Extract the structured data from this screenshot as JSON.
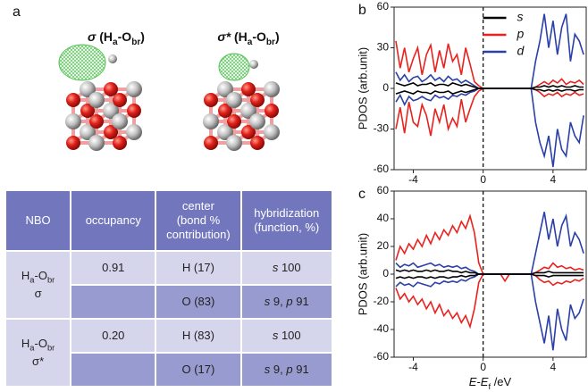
{
  "panel_a": "a",
  "structures": [
    {
      "title": [
        {
          "t": "σ",
          "i": true
        },
        {
          "t": " (H"
        },
        {
          "t": "a",
          "sub": true
        },
        {
          "t": "-O"
        },
        {
          "t": "br",
          "sub": true
        },
        {
          "t": ")"
        }
      ]
    },
    {
      "title": [
        {
          "t": "σ*",
          "i": true
        },
        {
          "t": " (H"
        },
        {
          "t": "a",
          "sub": true
        },
        {
          "t": "-O"
        },
        {
          "t": "br",
          "sub": true
        },
        {
          "t": ")"
        }
      ]
    }
  ],
  "table": {
    "header": [
      [
        "NBO"
      ],
      [
        "occupancy"
      ],
      [
        "center",
        "(bond %",
        "contribution)"
      ],
      [
        "hybridization",
        "(function, %)"
      ]
    ],
    "rows": [
      {
        "nbo": [
          [
            {
              "t": "H"
            },
            {
              "t": "a",
              "sub": true
            },
            {
              "t": "-O"
            },
            {
              "t": "br",
              "sub": true
            }
          ],
          "σ"
        ],
        "occupancy": "0.91",
        "center": [
          "H (17)",
          "O (83)"
        ],
        "hybridization": [
          [
            {
              "t": "s",
              "i": true
            },
            {
              "t": " 100"
            }
          ],
          [
            {
              "t": "s",
              "i": true
            },
            {
              "t": " 9,  "
            },
            {
              "t": "p",
              "i": true
            },
            {
              "t": " 91"
            }
          ]
        ]
      },
      {
        "nbo": [
          [
            {
              "t": "H"
            },
            {
              "t": "a",
              "sub": true
            },
            {
              "t": "-O"
            },
            {
              "t": "br",
              "sub": true
            }
          ],
          "σ*"
        ],
        "occupancy": "0.20",
        "center": [
          "H (83)",
          "O (17)"
        ],
        "hybridization": [
          [
            {
              "t": "s",
              "i": true
            },
            {
              "t": " 100"
            }
          ],
          [
            {
              "t": "s",
              "i": true
            },
            {
              "t": " 9,  "
            },
            {
              "t": "p",
              "i": true
            },
            {
              "t": " 91"
            }
          ]
        ]
      }
    ]
  },
  "chart_data": [
    {
      "type": "line",
      "panel": "b",
      "ylabel": "PDOS (arb.unit)",
      "legend": "upper-center",
      "fermi_level": 0,
      "xlim": [
        -5.1,
        5.9
      ],
      "xticks": [
        -4,
        0,
        4
      ],
      "ylim": [
        -60,
        60
      ],
      "yticks": [
        -60,
        -30,
        0,
        30,
        60
      ],
      "x": [
        -5,
        -4.75,
        -4.5,
        -4.25,
        -4,
        -3.75,
        -3.5,
        -3.25,
        -3,
        -2.75,
        -2.5,
        -2.25,
        -2,
        -1.75,
        -1.5,
        -1.25,
        -1,
        -0.75,
        -0.5,
        -0.25,
        0,
        0.25,
        0.5,
        0.75,
        1,
        1.25,
        1.5,
        1.75,
        2,
        2.25,
        2.5,
        2.75,
        3,
        3.25,
        3.5,
        3.75,
        4,
        4.25,
        4.5,
        4.75,
        5,
        5.25,
        5.5,
        5.75
      ],
      "series": [
        {
          "name": "s",
          "color": "#000000",
          "values": [
            4,
            3,
            2,
            3,
            4,
            2,
            3,
            3,
            4,
            2,
            3,
            3,
            2,
            4,
            3,
            2,
            3,
            2,
            1,
            0,
            0,
            0,
            0,
            0,
            0,
            0,
            0,
            0,
            0,
            0,
            0,
            0,
            1,
            1,
            2,
            1,
            2,
            1,
            2,
            1,
            1,
            2,
            1,
            1
          ],
          "values_down": [
            -4,
            -3,
            -2,
            -3,
            -4,
            -2,
            -3,
            -3,
            -4,
            -2,
            -3,
            -3,
            -2,
            -4,
            -3,
            -2,
            -3,
            -2,
            -1,
            0,
            0,
            0,
            0,
            0,
            0,
            0,
            0,
            0,
            0,
            0,
            0,
            0,
            -1,
            -1,
            -2,
            -1,
            -2,
            -1,
            -2,
            -1,
            -1,
            -2,
            -1,
            -1
          ]
        },
        {
          "name": "p",
          "color": "#e8221e",
          "values": [
            35,
            15,
            30,
            12,
            22,
            30,
            10,
            25,
            32,
            12,
            28,
            15,
            33,
            20,
            25,
            10,
            30,
            18,
            5,
            2,
            0,
            0,
            0,
            0,
            0,
            0,
            0,
            0,
            0,
            0,
            0,
            0,
            1,
            3,
            5,
            3,
            6,
            4,
            7,
            3,
            5,
            4,
            6,
            3
          ],
          "values_down": [
            -30,
            -14,
            -33,
            -10,
            -25,
            -28,
            -12,
            -20,
            -35,
            -15,
            -25,
            -12,
            -30,
            -22,
            -28,
            -8,
            -25,
            -15,
            -6,
            -2,
            0,
            0,
            0,
            0,
            0,
            0,
            0,
            0,
            0,
            0,
            0,
            0,
            -1,
            -3,
            -6,
            -4,
            -5,
            -3,
            -6,
            -4,
            -5,
            -3,
            -5,
            -4
          ]
        },
        {
          "name": "d",
          "color": "#2a3fa8",
          "values": [
            12,
            6,
            10,
            5,
            8,
            9,
            5,
            7,
            10,
            6,
            8,
            5,
            9,
            6,
            7,
            4,
            6,
            4,
            2,
            0,
            0,
            0,
            0,
            0,
            0,
            0,
            0,
            0,
            0,
            0,
            0,
            0,
            20,
            35,
            55,
            30,
            50,
            25,
            45,
            55,
            20,
            40,
            35,
            25
          ],
          "values_down": [
            -10,
            -5,
            -12,
            -6,
            -9,
            -8,
            -6,
            -8,
            -9,
            -5,
            -7,
            -6,
            -8,
            -5,
            -6,
            -4,
            -5,
            -3,
            -2,
            0,
            0,
            0,
            0,
            0,
            0,
            0,
            0,
            0,
            0,
            0,
            0,
            0,
            -25,
            -40,
            -50,
            -35,
            -58,
            -30,
            -45,
            -50,
            -25,
            -35,
            -40,
            -20
          ]
        }
      ]
    },
    {
      "type": "line",
      "panel": "c",
      "ylabel": "PDOS (arb.unit)",
      "xlabel": [
        {
          "t": "E",
          "i": true
        },
        {
          "t": "-"
        },
        {
          "t": "E",
          "i": true
        },
        {
          "t": "f",
          "sub": true
        },
        {
          "t": " /eV"
        }
      ],
      "fermi_level": 0,
      "xlim": [
        -5.1,
        5.9
      ],
      "xticks": [
        -4,
        0,
        4
      ],
      "ylim": [
        -60,
        60
      ],
      "yticks": [
        -60,
        -40,
        -20,
        0,
        20,
        40,
        60
      ],
      "x": [
        -5,
        -4.75,
        -4.5,
        -4.25,
        -4,
        -3.75,
        -3.5,
        -3.25,
        -3,
        -2.75,
        -2.5,
        -2.25,
        -2,
        -1.75,
        -1.5,
        -1.25,
        -1,
        -0.75,
        -0.5,
        -0.25,
        0,
        0.25,
        0.5,
        0.75,
        1,
        1.25,
        1.5,
        1.75,
        2,
        2.25,
        2.5,
        2.75,
        3,
        3.25,
        3.5,
        3.75,
        4,
        4.25,
        4.5,
        4.75,
        5,
        5.25,
        5.5,
        5.75
      ],
      "series": [
        {
          "name": "s",
          "color": "#000000",
          "values": [
            3,
            2,
            3,
            2,
            3,
            2,
            2,
            3,
            2,
            3,
            2,
            2,
            3,
            2,
            2,
            1,
            2,
            1,
            1,
            0,
            0,
            0,
            0,
            0,
            0,
            0,
            0,
            0,
            0,
            0,
            0,
            0,
            1,
            1,
            1,
            2,
            1,
            1,
            1,
            1,
            1,
            1,
            1,
            1
          ],
          "values_down": [
            -3,
            -2,
            -3,
            -2,
            -3,
            -2,
            -2,
            -3,
            -2,
            -3,
            -2,
            -2,
            -3,
            -2,
            -2,
            -1,
            -2,
            -1,
            -1,
            0,
            0,
            0,
            0,
            0,
            0,
            0,
            0,
            0,
            0,
            0,
            0,
            0,
            -1,
            -1,
            -1,
            -2,
            -1,
            -1,
            -1,
            -1,
            -1,
            -1,
            -1,
            -1
          ]
        },
        {
          "name": "p",
          "color": "#e8221e",
          "values": [
            10,
            20,
            15,
            22,
            18,
            25,
            20,
            28,
            22,
            30,
            25,
            32,
            28,
            35,
            30,
            38,
            33,
            42,
            30,
            8,
            0,
            0,
            0,
            0,
            0,
            0,
            0,
            0,
            0,
            0,
            0,
            0,
            1,
            3,
            5,
            4,
            8,
            5,
            6,
            4,
            5,
            3,
            4,
            3
          ],
          "values_down": [
            -10,
            -18,
            -14,
            -20,
            -16,
            -22,
            -18,
            -25,
            -20,
            -28,
            -22,
            -30,
            -26,
            -32,
            -28,
            -35,
            -30,
            -38,
            -25,
            -6,
            0,
            0,
            0,
            0,
            0,
            -5,
            0,
            0,
            0,
            0,
            0,
            0,
            -1,
            -4,
            -6,
            -5,
            -8,
            -6,
            -7,
            -5,
            -6,
            -4,
            -5,
            -3
          ]
        },
        {
          "name": "d",
          "color": "#2a3fa8",
          "values": [
            8,
            5,
            7,
            6,
            8,
            5,
            6,
            7,
            8,
            6,
            7,
            5,
            6,
            5,
            6,
            4,
            5,
            3,
            2,
            0,
            0,
            0,
            0,
            0,
            0,
            0,
            0,
            0,
            0,
            0,
            0,
            0,
            15,
            30,
            45,
            25,
            40,
            20,
            35,
            42,
            20,
            30,
            25,
            15
          ],
          "values_down": [
            -9,
            -6,
            -8,
            -7,
            -9,
            -6,
            -7,
            -8,
            -9,
            -6,
            -7,
            -5,
            -6,
            -5,
            -6,
            -4,
            -5,
            -3,
            -2,
            0,
            0,
            0,
            0,
            0,
            0,
            0,
            0,
            0,
            0,
            0,
            0,
            0,
            -20,
            -35,
            -50,
            -30,
            -55,
            -25,
            -40,
            -48,
            -22,
            -32,
            -28,
            -18
          ]
        }
      ]
    }
  ]
}
